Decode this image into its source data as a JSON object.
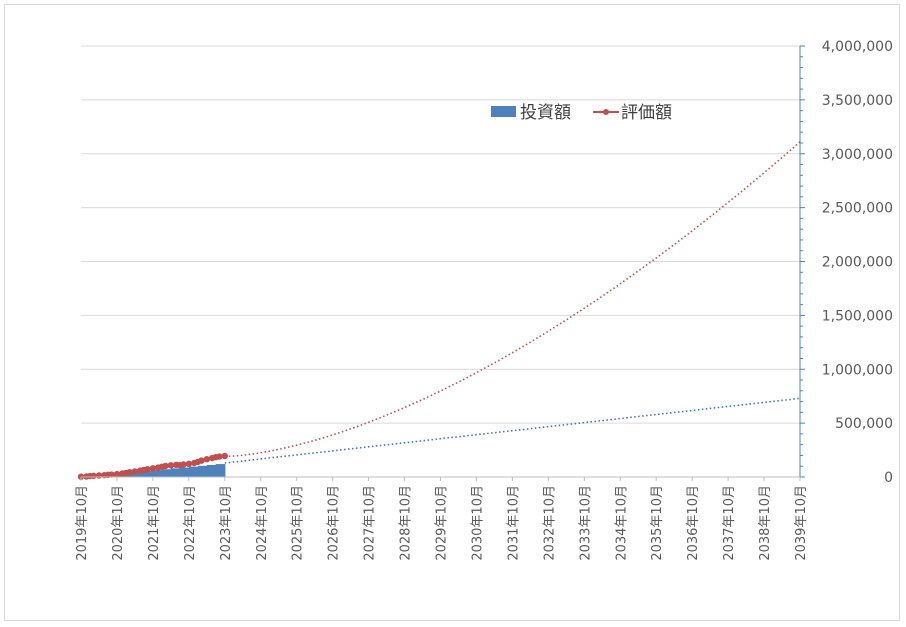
{
  "chart_data": {
    "type": "bar",
    "x_labels": [
      "2019年10月",
      "2020年10月",
      "2021年10月",
      "2022年10月",
      "2023年10月",
      "2024年10月",
      "2025年10月",
      "2026年10月",
      "2027年10月",
      "2028年10月",
      "2029年10月",
      "2030年10月",
      "2031年10月",
      "2032年10月",
      "2033年10月",
      "2034年10月",
      "2035年10月",
      "2036年10月",
      "2037年10月",
      "2038年10月",
      "2039年10月"
    ],
    "y_axis": {
      "position": "right",
      "min": 0,
      "max": 4000000,
      "ticks": [
        0,
        500000,
        1000000,
        1500000,
        2000000,
        2500000,
        3000000,
        3500000,
        4000000
      ],
      "tick_labels": [
        "0",
        "500,000",
        "1,000,000",
        "1,500,000",
        "2,000,000",
        "2,500,000",
        "3,000,000",
        "3,500,000",
        "4,000,000"
      ]
    },
    "grid": true,
    "legend": {
      "placement": "top-center",
      "entries": [
        "投資額",
        "評価額"
      ]
    },
    "series": [
      {
        "name": "投資額",
        "kind": "bar",
        "color": "#4f81bd",
        "x_year": [
          2019.75,
          2020.0,
          2020.25,
          2020.5,
          2020.75,
          2021.0,
          2021.25,
          2021.5,
          2021.75,
          2022.0,
          2022.25,
          2022.5,
          2022.75,
          2023.0,
          2023.25,
          2023.5,
          2023.75
        ],
        "values": [
          3000,
          8000,
          16000,
          24000,
          32000,
          40000,
          48000,
          56000,
          64000,
          72000,
          80000,
          88000,
          96000,
          104000,
          112000,
          120000,
          128000
        ]
      },
      {
        "name": "評価額",
        "kind": "line",
        "color": "#c0504d",
        "x_year": [
          2019.75,
          2019.9,
          2020.0,
          2020.1,
          2020.25,
          2020.4,
          2020.5,
          2020.6,
          2020.75,
          2020.9,
          2021.0,
          2021.1,
          2021.25,
          2021.4,
          2021.5,
          2021.6,
          2021.75,
          2021.9,
          2022.0,
          2022.1,
          2022.25,
          2022.4,
          2022.5,
          2022.6,
          2022.75,
          2022.9,
          2023.0,
          2023.1,
          2023.25,
          2023.4,
          2023.5,
          2023.6,
          2023.75
        ],
        "values": [
          3000,
          5000,
          9000,
          11000,
          14000,
          17000,
          20000,
          23000,
          27000,
          32000,
          38000,
          45000,
          52000,
          60000,
          66000,
          72000,
          80000,
          88000,
          95000,
          102000,
          108000,
          113000,
          110000,
          116000,
          122000,
          130000,
          140000,
          152000,
          165000,
          176000,
          184000,
          190000,
          195000
        ]
      }
    ],
    "trendlines": [
      {
        "series": "投資額",
        "color": "#4472c4",
        "style": "dotted",
        "from_year": 2023.75,
        "to_year": 2039.75,
        "start_value": 130000,
        "end_value": 730000,
        "curve": "linear"
      },
      {
        "series": "評価額",
        "color": "#c0504d",
        "style": "dotted",
        "from_year": 2023.75,
        "to_year": 2039.75,
        "start_value": 190000,
        "end_value": 3110000,
        "curve": "convex"
      }
    ]
  }
}
